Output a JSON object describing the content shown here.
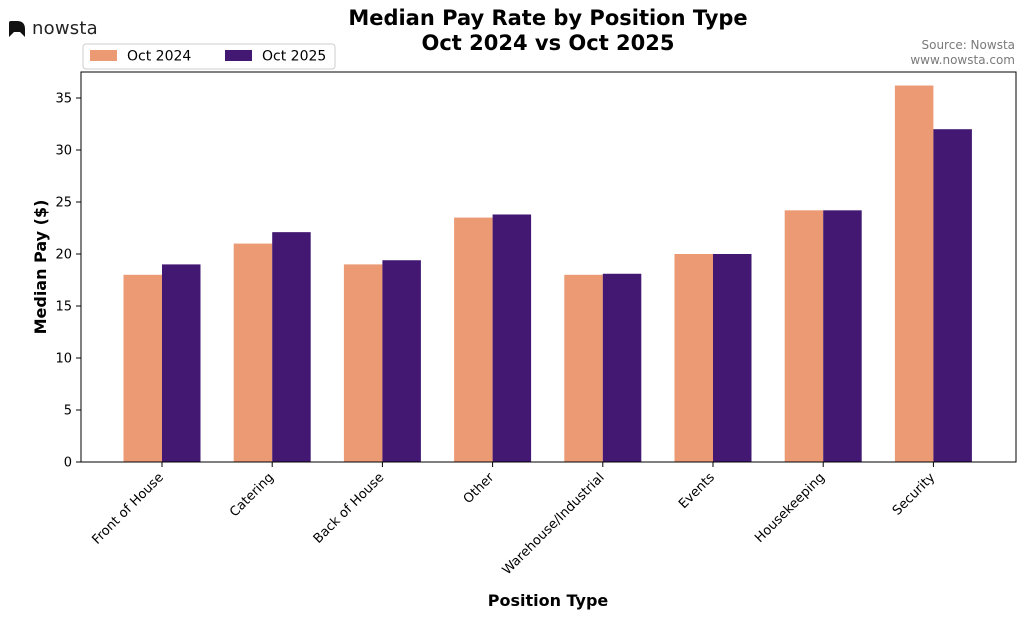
{
  "brand": {
    "logo_icon": "nowsta-logo-icon",
    "name": "nowsta"
  },
  "title_line1": "Median Pay Rate by Position Type",
  "title_line2": "Oct 2024 vs Oct 2025",
  "source_line1": "Source: Nowsta",
  "source_line2": "www.nowsta.com",
  "chart_data": {
    "type": "bar",
    "categories": [
      "Front of House",
      "Catering",
      "Back of House",
      "Other",
      "Warehouse/Industrial",
      "Events",
      "Housekeeping",
      "Security"
    ],
    "series": [
      {
        "name": "Oct 2024",
        "color": "#ec9a73",
        "values": [
          18.0,
          21.0,
          19.0,
          23.5,
          18.0,
          20.0,
          24.2,
          36.2
        ]
      },
      {
        "name": "Oct 2025",
        "color": "#421872",
        "values": [
          19.0,
          22.1,
          19.4,
          23.8,
          18.1,
          20.0,
          24.2,
          32.0
        ]
      }
    ],
    "xlabel": "Position Type",
    "ylabel": "Median Pay ($)",
    "ylim": [
      0,
      37.5
    ],
    "yticks": [
      0,
      5,
      10,
      15,
      20,
      25,
      30,
      35
    ],
    "grid": false,
    "legend": "top-left"
  }
}
